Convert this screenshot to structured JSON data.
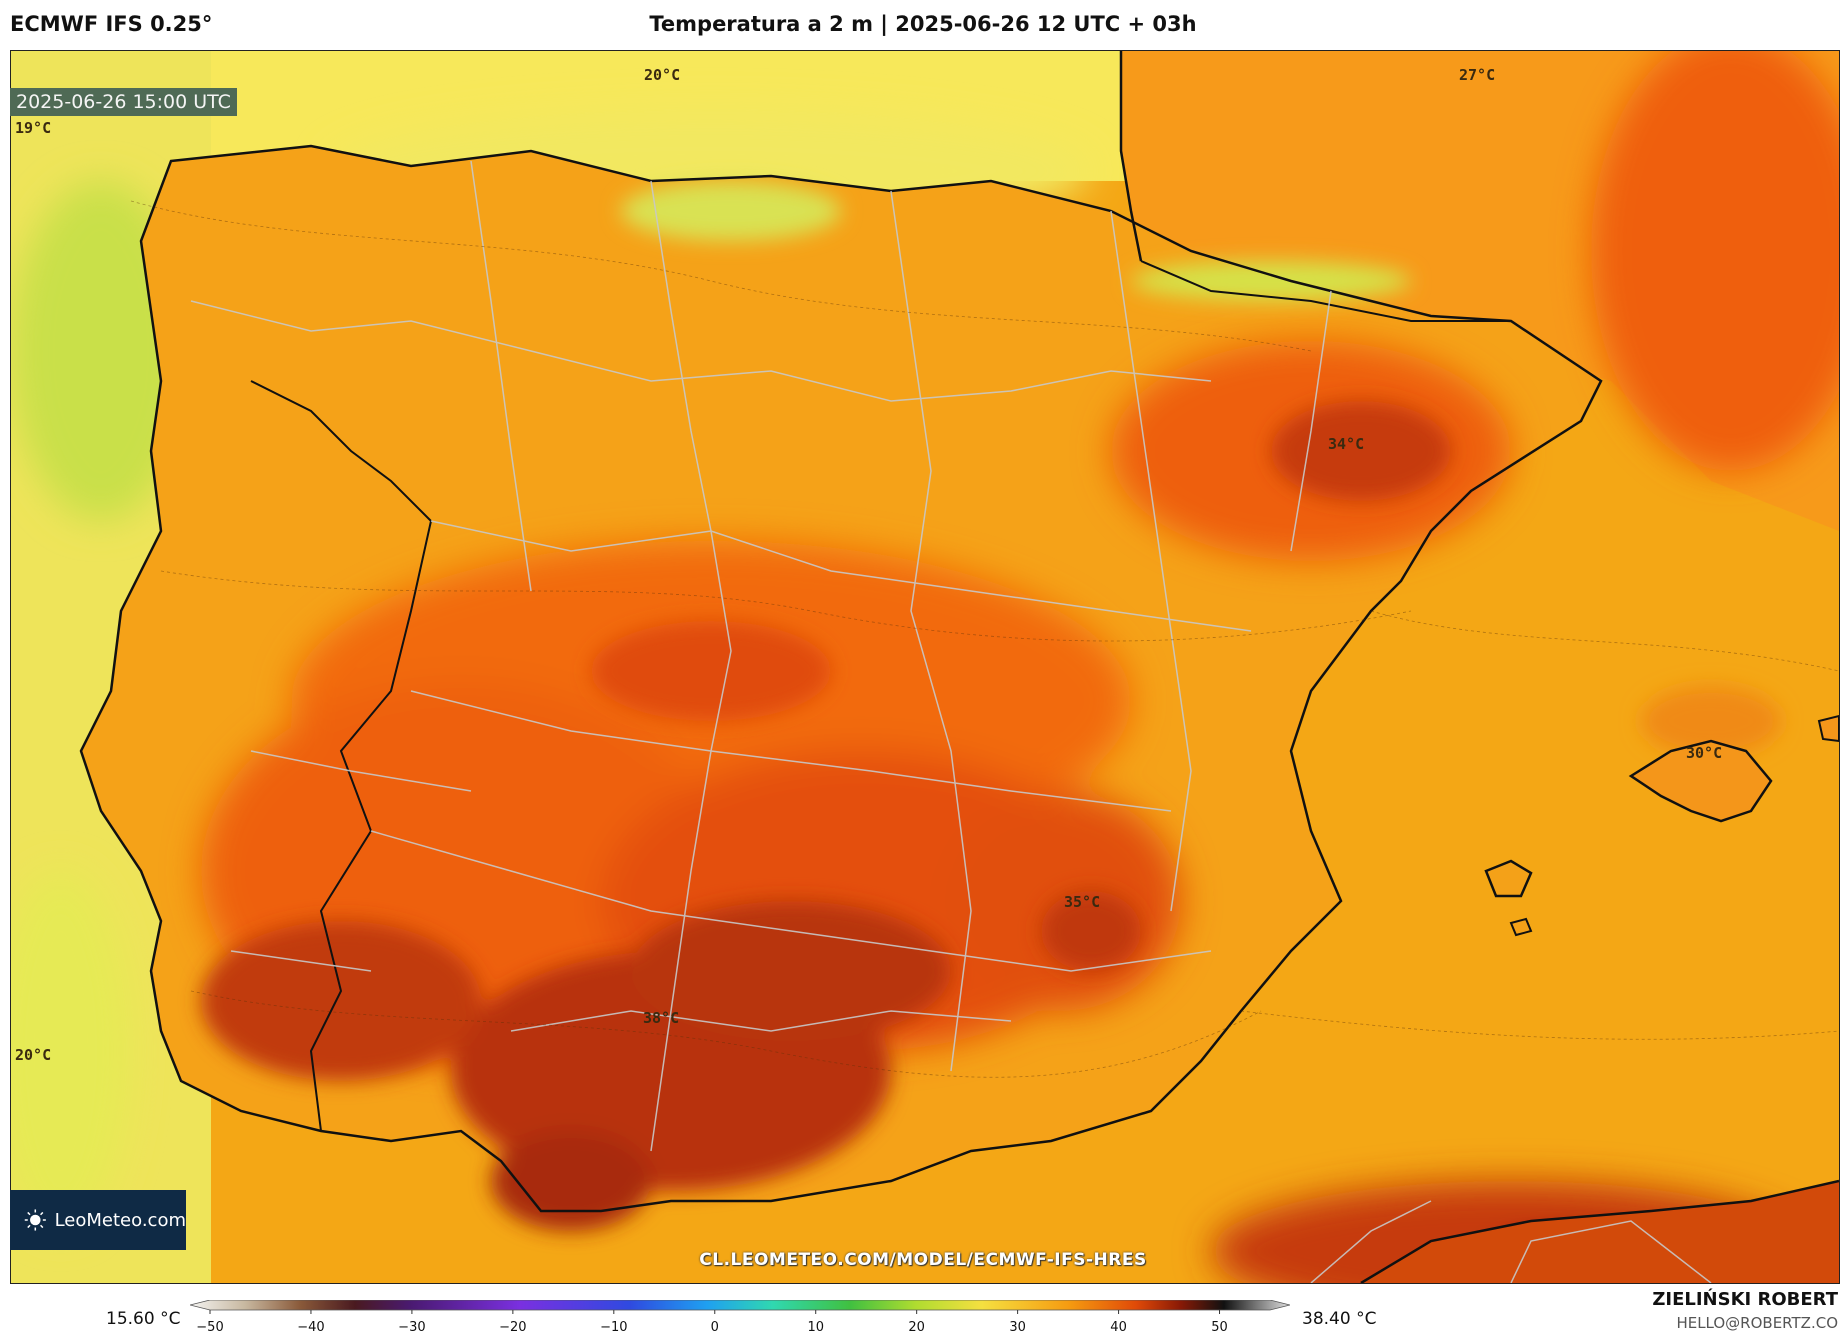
{
  "header": {
    "model": "ECMWF IFS 0.25°",
    "title": "Temperatura a 2 m | 2025-06-26 12 UTC + 03h"
  },
  "map": {
    "valid_time": "2025-06-26 15:00 UTC",
    "temperature_labels": [
      {
        "id": "north-sea",
        "text": "20°C"
      },
      {
        "id": "north-france",
        "text": "27°C"
      },
      {
        "id": "atlantic-nw",
        "text": "19°C"
      },
      {
        "id": "aragon",
        "text": "34°C"
      },
      {
        "id": "balearic",
        "text": "30°C"
      },
      {
        "id": "murcia",
        "text": "35°C"
      },
      {
        "id": "andalusia",
        "text": "38°C"
      },
      {
        "id": "atlantic-sw",
        "text": "20°C"
      }
    ],
    "regions": [
      "Iberian Peninsula",
      "Balearic Islands",
      "Southern France",
      "North Africa coast"
    ]
  },
  "branding": {
    "logo": "LeoMeteo.com",
    "url": "CL.LEOMETEO.COM/MODEL/ECMWF-IFS-HRES",
    "author": "ZIELIŃSKI ROBERT",
    "email": "HELLO@ROBERTZ.CO"
  },
  "colorbar": {
    "min_value": "15.60 °C",
    "max_value": "38.40 °C",
    "ticks": [
      "−50",
      "−40",
      "−30",
      "−20",
      "−10",
      "0",
      "10",
      "20",
      "30",
      "40",
      "50"
    ],
    "range": [
      -50,
      55
    ],
    "colors": {
      "light": "#f2f2f0",
      "brown": "#5a1e0a",
      "purple": "#7a2ee0",
      "blue": "#1f8ff0",
      "green": "#3cc060",
      "yellow": "#f5e040",
      "orange": "#f57a10",
      "red": "#c02a08",
      "black": "#111111",
      "grey": "#d0d0d0"
    }
  }
}
